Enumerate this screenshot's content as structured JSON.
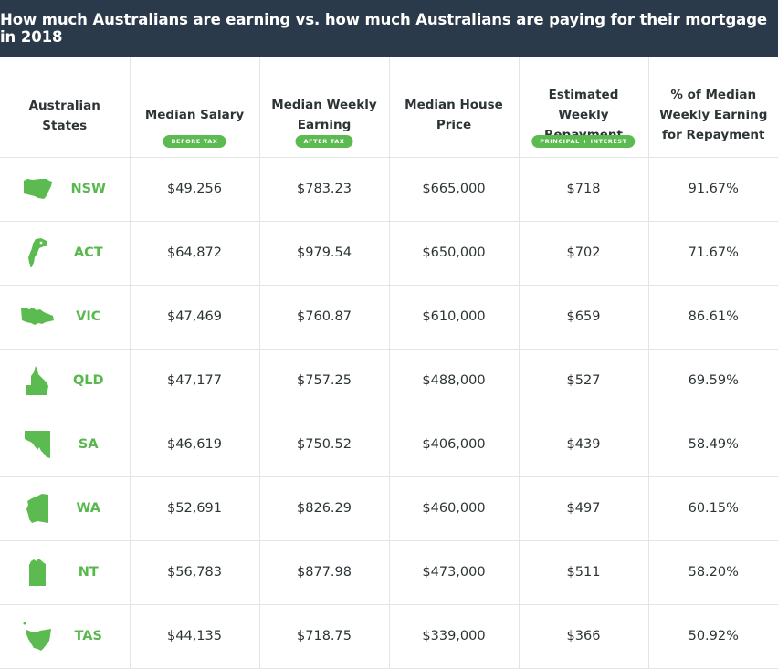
{
  "title": "How much Australians are earning vs. how much Australians are paying for their mortgage in 2018",
  "colors": {
    "header_bg": "#2b3a4a",
    "accent_green": "#5cbb50",
    "text": "#2d3436",
    "grid": "#e4e4e4"
  },
  "headers": [
    {
      "label": "Australian\nStates",
      "badge": ""
    },
    {
      "label": "Median Salary",
      "badge": "BEFORE TAX"
    },
    {
      "label": "Median Weekly\nEarning",
      "badge": "AFTER TAX"
    },
    {
      "label": "Median House\nPrice",
      "badge": ""
    },
    {
      "label": "Estimated Weekly\nRepayment",
      "badge": "PRINCIPAL + INTEREST"
    },
    {
      "label": "% of Median\nWeekly Earning\nfor Repayment",
      "badge": ""
    }
  ],
  "rows": [
    {
      "icon": "nsw-map-icon",
      "state": "NSW",
      "salary": "$49,256",
      "weekly": "$783.23",
      "house": "$665,000",
      "repayment": "$718",
      "percent": "91.67%"
    },
    {
      "icon": "act-map-icon",
      "state": "ACT",
      "salary": "$64,872",
      "weekly": "$979.54",
      "house": "$650,000",
      "repayment": "$702",
      "percent": "71.67%"
    },
    {
      "icon": "vic-map-icon",
      "state": "VIC",
      "salary": "$47,469",
      "weekly": "$760.87",
      "house": "$610,000",
      "repayment": "$659",
      "percent": "86.61%"
    },
    {
      "icon": "qld-map-icon",
      "state": "QLD",
      "salary": "$47,177",
      "weekly": "$757.25",
      "house": "$488,000",
      "repayment": "$527",
      "percent": "69.59%"
    },
    {
      "icon": "sa-map-icon",
      "state": "SA",
      "salary": "$46,619",
      "weekly": "$750.52",
      "house": "$406,000",
      "repayment": "$439",
      "percent": "58.49%"
    },
    {
      "icon": "wa-map-icon",
      "state": "WA",
      "salary": "$52,691",
      "weekly": "$826.29",
      "house": "$460,000",
      "repayment": "$497",
      "percent": "60.15%"
    },
    {
      "icon": "nt-map-icon",
      "state": "NT",
      "salary": "$56,783",
      "weekly": "$877.98",
      "house": "$473,000",
      "repayment": "$511",
      "percent": "58.20%"
    },
    {
      "icon": "tas-map-icon",
      "state": "TAS",
      "salary": "$44,135",
      "weekly": "$718.75",
      "house": "$339,000",
      "repayment": "$366",
      "percent": "50.92%"
    }
  ]
}
